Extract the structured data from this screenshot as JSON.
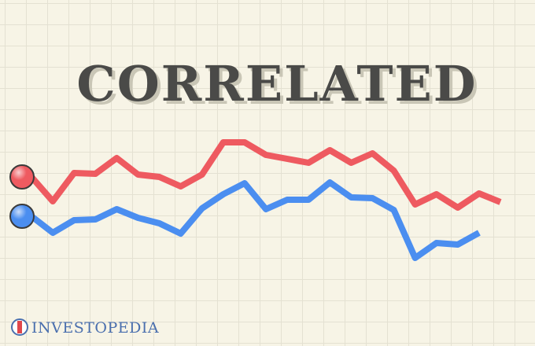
{
  "chart_data": {
    "type": "line",
    "title": "CORRELATED",
    "brand": "INVESTOPEDIA",
    "categories": [
      null,
      null,
      null,
      null,
      null,
      null,
      null,
      null,
      null,
      null,
      null,
      null,
      null,
      null,
      null,
      null,
      null,
      null,
      null,
      null,
      null,
      null,
      null
    ],
    "ylim": [
      0,
      100
    ],
    "series": [
      {
        "name": null,
        "color": "#ee5a60",
        "values": [
          57.5,
          42,
          60,
          59.5,
          69.5,
          59,
          57.5,
          51.5,
          59,
          79.5,
          79.5,
          71.5,
          69,
          66.5,
          74.5,
          66.5,
          72.5,
          61.5,
          40,
          46.5,
          38,
          47,
          41.5
        ]
      },
      {
        "name": null,
        "color": "#4b8ef0",
        "values": [
          32.5,
          22,
          30,
          30.5,
          37,
          31.5,
          28,
          21.5,
          37.5,
          46.5,
          53.5,
          37,
          43,
          43,
          54,
          44.5,
          44,
          36.5,
          6,
          15.5,
          14.5,
          22,
          null
        ]
      }
    ]
  }
}
